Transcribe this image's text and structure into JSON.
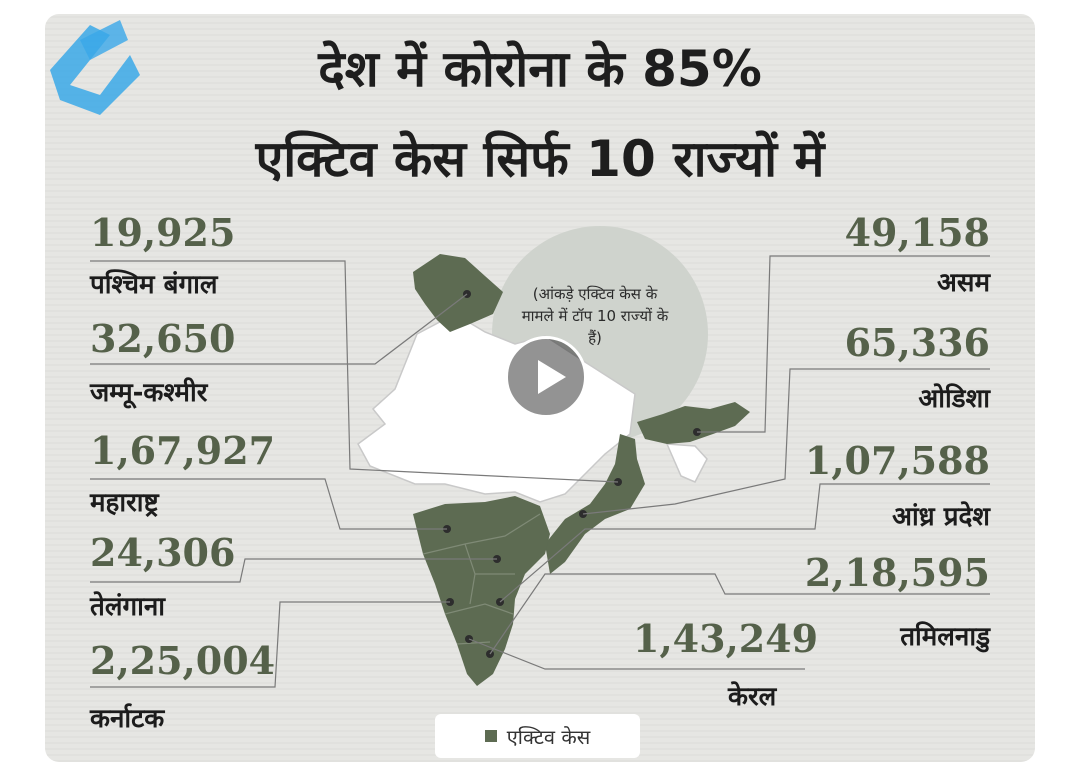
{
  "title": {
    "line1": "देश में कोरोना के 85%",
    "line2": "एक्टिव केस सिर्फ 10 राज्यों में"
  },
  "note": "(आंकड़े एक्टिव केस के मामले में टॉप 10 राज्यों के हैं)",
  "legend": {
    "label": "एक्टिव केस",
    "color": "#5d6b52"
  },
  "colors": {
    "highlight": "#5d6b52",
    "other": "#ffffff",
    "numbers": "#55614a",
    "bubble": "#cfd3cd"
  },
  "states_left": [
    {
      "value": "19,925",
      "name": "पश्चिम बंगाल"
    },
    {
      "value": "32,650",
      "name": "जम्मू-कश्मीर"
    },
    {
      "value": "1,67,927",
      "name": "महाराष्ट्र"
    },
    {
      "value": "24,306",
      "name": "तेलंगाना"
    },
    {
      "value": "2,25,004",
      "name": "कर्नाटक"
    }
  ],
  "states_right": [
    {
      "value": "49,158",
      "name": "असम"
    },
    {
      "value": "65,336",
      "name": "ओडिशा"
    },
    {
      "value": "1,07,588",
      "name": "आंध्र प्रदेश"
    },
    {
      "value": "2,18,595",
      "name": "तमिलनाडु"
    },
    {
      "value": "1,43,249",
      "name": "केरल"
    }
  ],
  "overlay": {
    "play_icon": "play-icon"
  }
}
